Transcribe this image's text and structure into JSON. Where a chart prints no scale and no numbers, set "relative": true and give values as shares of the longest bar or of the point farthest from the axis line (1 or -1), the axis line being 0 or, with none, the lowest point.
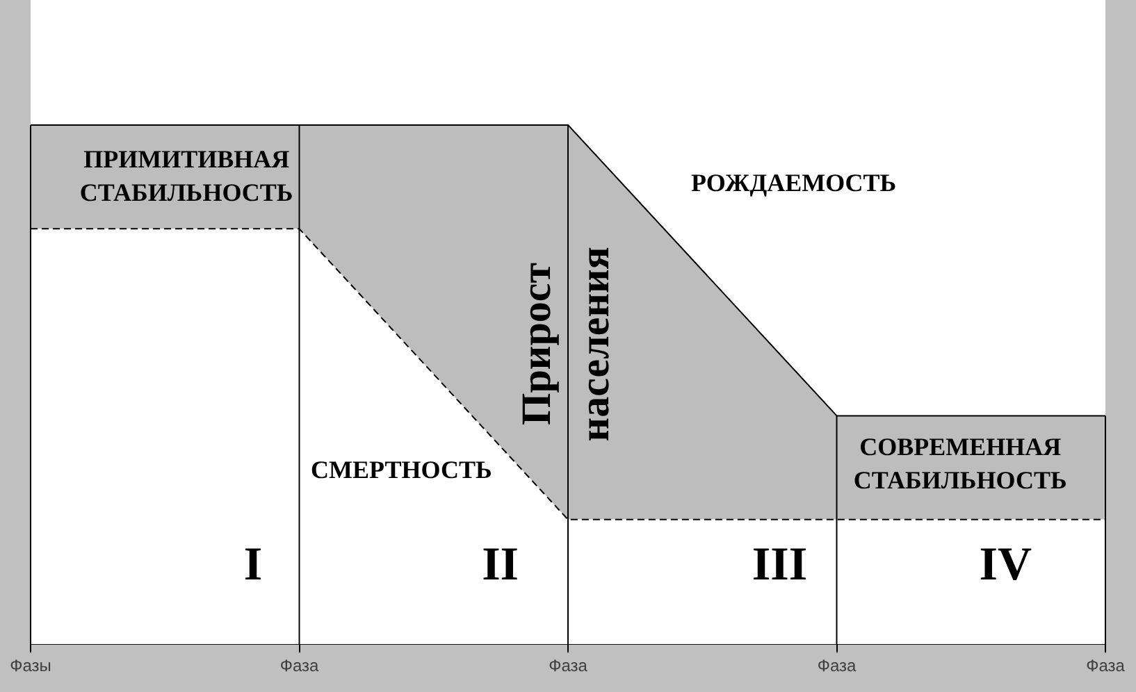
{
  "chart_data": {
    "type": "area",
    "relative": true,
    "categories": [
      "Фазы",
      "Фаза",
      "Фаза",
      "Фаза",
      "Фаза"
    ],
    "series": [
      {
        "name": "СМЕРТНОСТЬ",
        "color": "#ffffff",
        "line_style": "dashed",
        "values": [
          0.8,
          0.8,
          0.24,
          0.24,
          0.24
        ]
      },
      {
        "name": "РОЖДАЕМОСТЬ",
        "color": "#bdbdbd",
        "line_style": "solid",
        "values": [
          1,
          1,
          1,
          0.44,
          0.44
        ]
      }
    ],
    "annotations": [
      "ПРИМИТИВНАЯ\nСТАБИЛЬНОСТЬ",
      "Прирост\nнаселения",
      "СОВРЕМЕННАЯ\nСТАБИЛЬНОСТЬ",
      "I",
      "II",
      "III",
      "IV"
    ],
    "grid": "x",
    "legend": false,
    "marker": "none"
  }
}
